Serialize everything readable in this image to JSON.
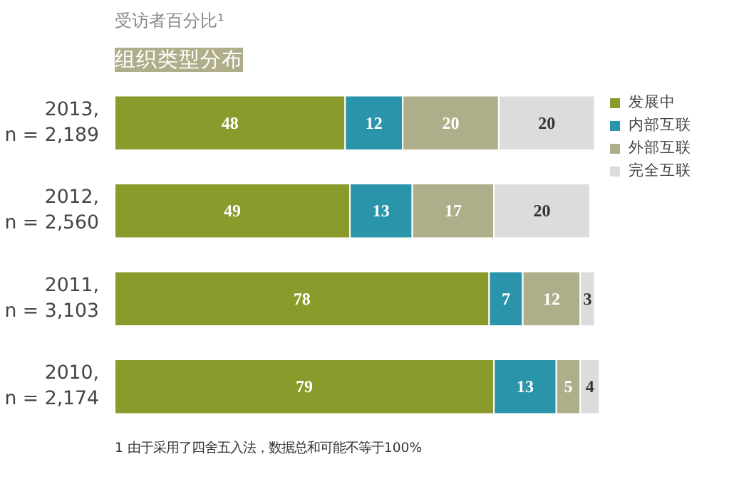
{
  "chart_data": {
    "type": "bar",
    "orientation": "horizontal",
    "stacked": true,
    "data_labels": true,
    "legend": "top right",
    "grid": false,
    "title": "组织类型分布",
    "subtitle": "受访者百分比¹",
    "categories": [
      "2013,\nn = 2,189",
      "2012,\nn = 2,560",
      "2011,\nn = 3,103",
      "2010,\nn = 2,174"
    ],
    "series": [
      {
        "name": "发展中",
        "color": "#8a9a2b",
        "values": [
          48,
          49,
          78,
          79
        ]
      },
      {
        "name": "内部互联",
        "color": "#2a95aa",
        "values": [
          12,
          13,
          7,
          13
        ]
      },
      {
        "name": "外部互联",
        "color": "#aeae8a",
        "values": [
          20,
          17,
          12,
          5
        ]
      },
      {
        "name": "完全互联",
        "color": "#dcdcdc",
        "values": [
          20,
          20,
          3,
          4
        ]
      }
    ],
    "annotations": [
      "1 由于采用了四舍五入法，数据总和可能不等于100%"
    ]
  }
}
